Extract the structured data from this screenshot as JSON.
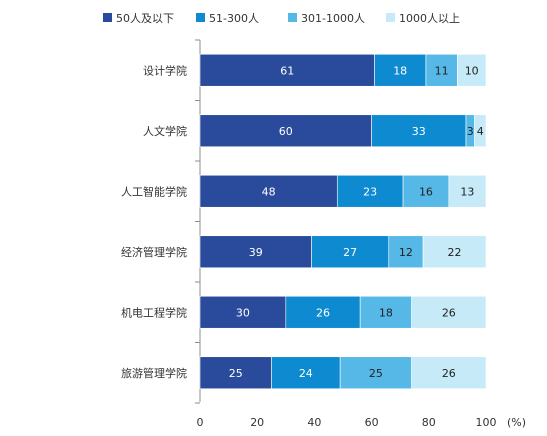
{
  "chart_data": {
    "type": "bar",
    "orientation": "horizontal",
    "stacked": true,
    "title": "",
    "xlabel": "",
    "ylabel": "",
    "x_unit": "(%)",
    "xlim": [
      0,
      100
    ],
    "x_ticks": [
      "0",
      "20",
      "40",
      "60",
      "80",
      "100"
    ],
    "grid": false,
    "legend_position": "top",
    "categories": [
      "设计学院",
      "人文学院",
      "人工智能学院",
      "经济管理学院",
      "机电工程学院",
      "旅游管理学院"
    ],
    "series": [
      {
        "name": "50人及以下",
        "color": "#2A4B9B",
        "label_color": "#ffffff",
        "values": [
          61,
          60,
          48,
          39,
          30,
          25
        ]
      },
      {
        "name": "51-300人",
        "color": "#0E8BD0",
        "label_color": "#ffffff",
        "values": [
          18,
          33,
          23,
          27,
          26,
          24
        ]
      },
      {
        "name": "301-1000人",
        "color": "#56B8E6",
        "label_color": "#222222",
        "values": [
          11,
          3,
          16,
          12,
          18,
          25
        ]
      },
      {
        "name": "1000人以上",
        "color": "#C7EAF8",
        "label_color": "#222222",
        "values": [
          10,
          4,
          13,
          22,
          26,
          26
        ]
      }
    ]
  }
}
